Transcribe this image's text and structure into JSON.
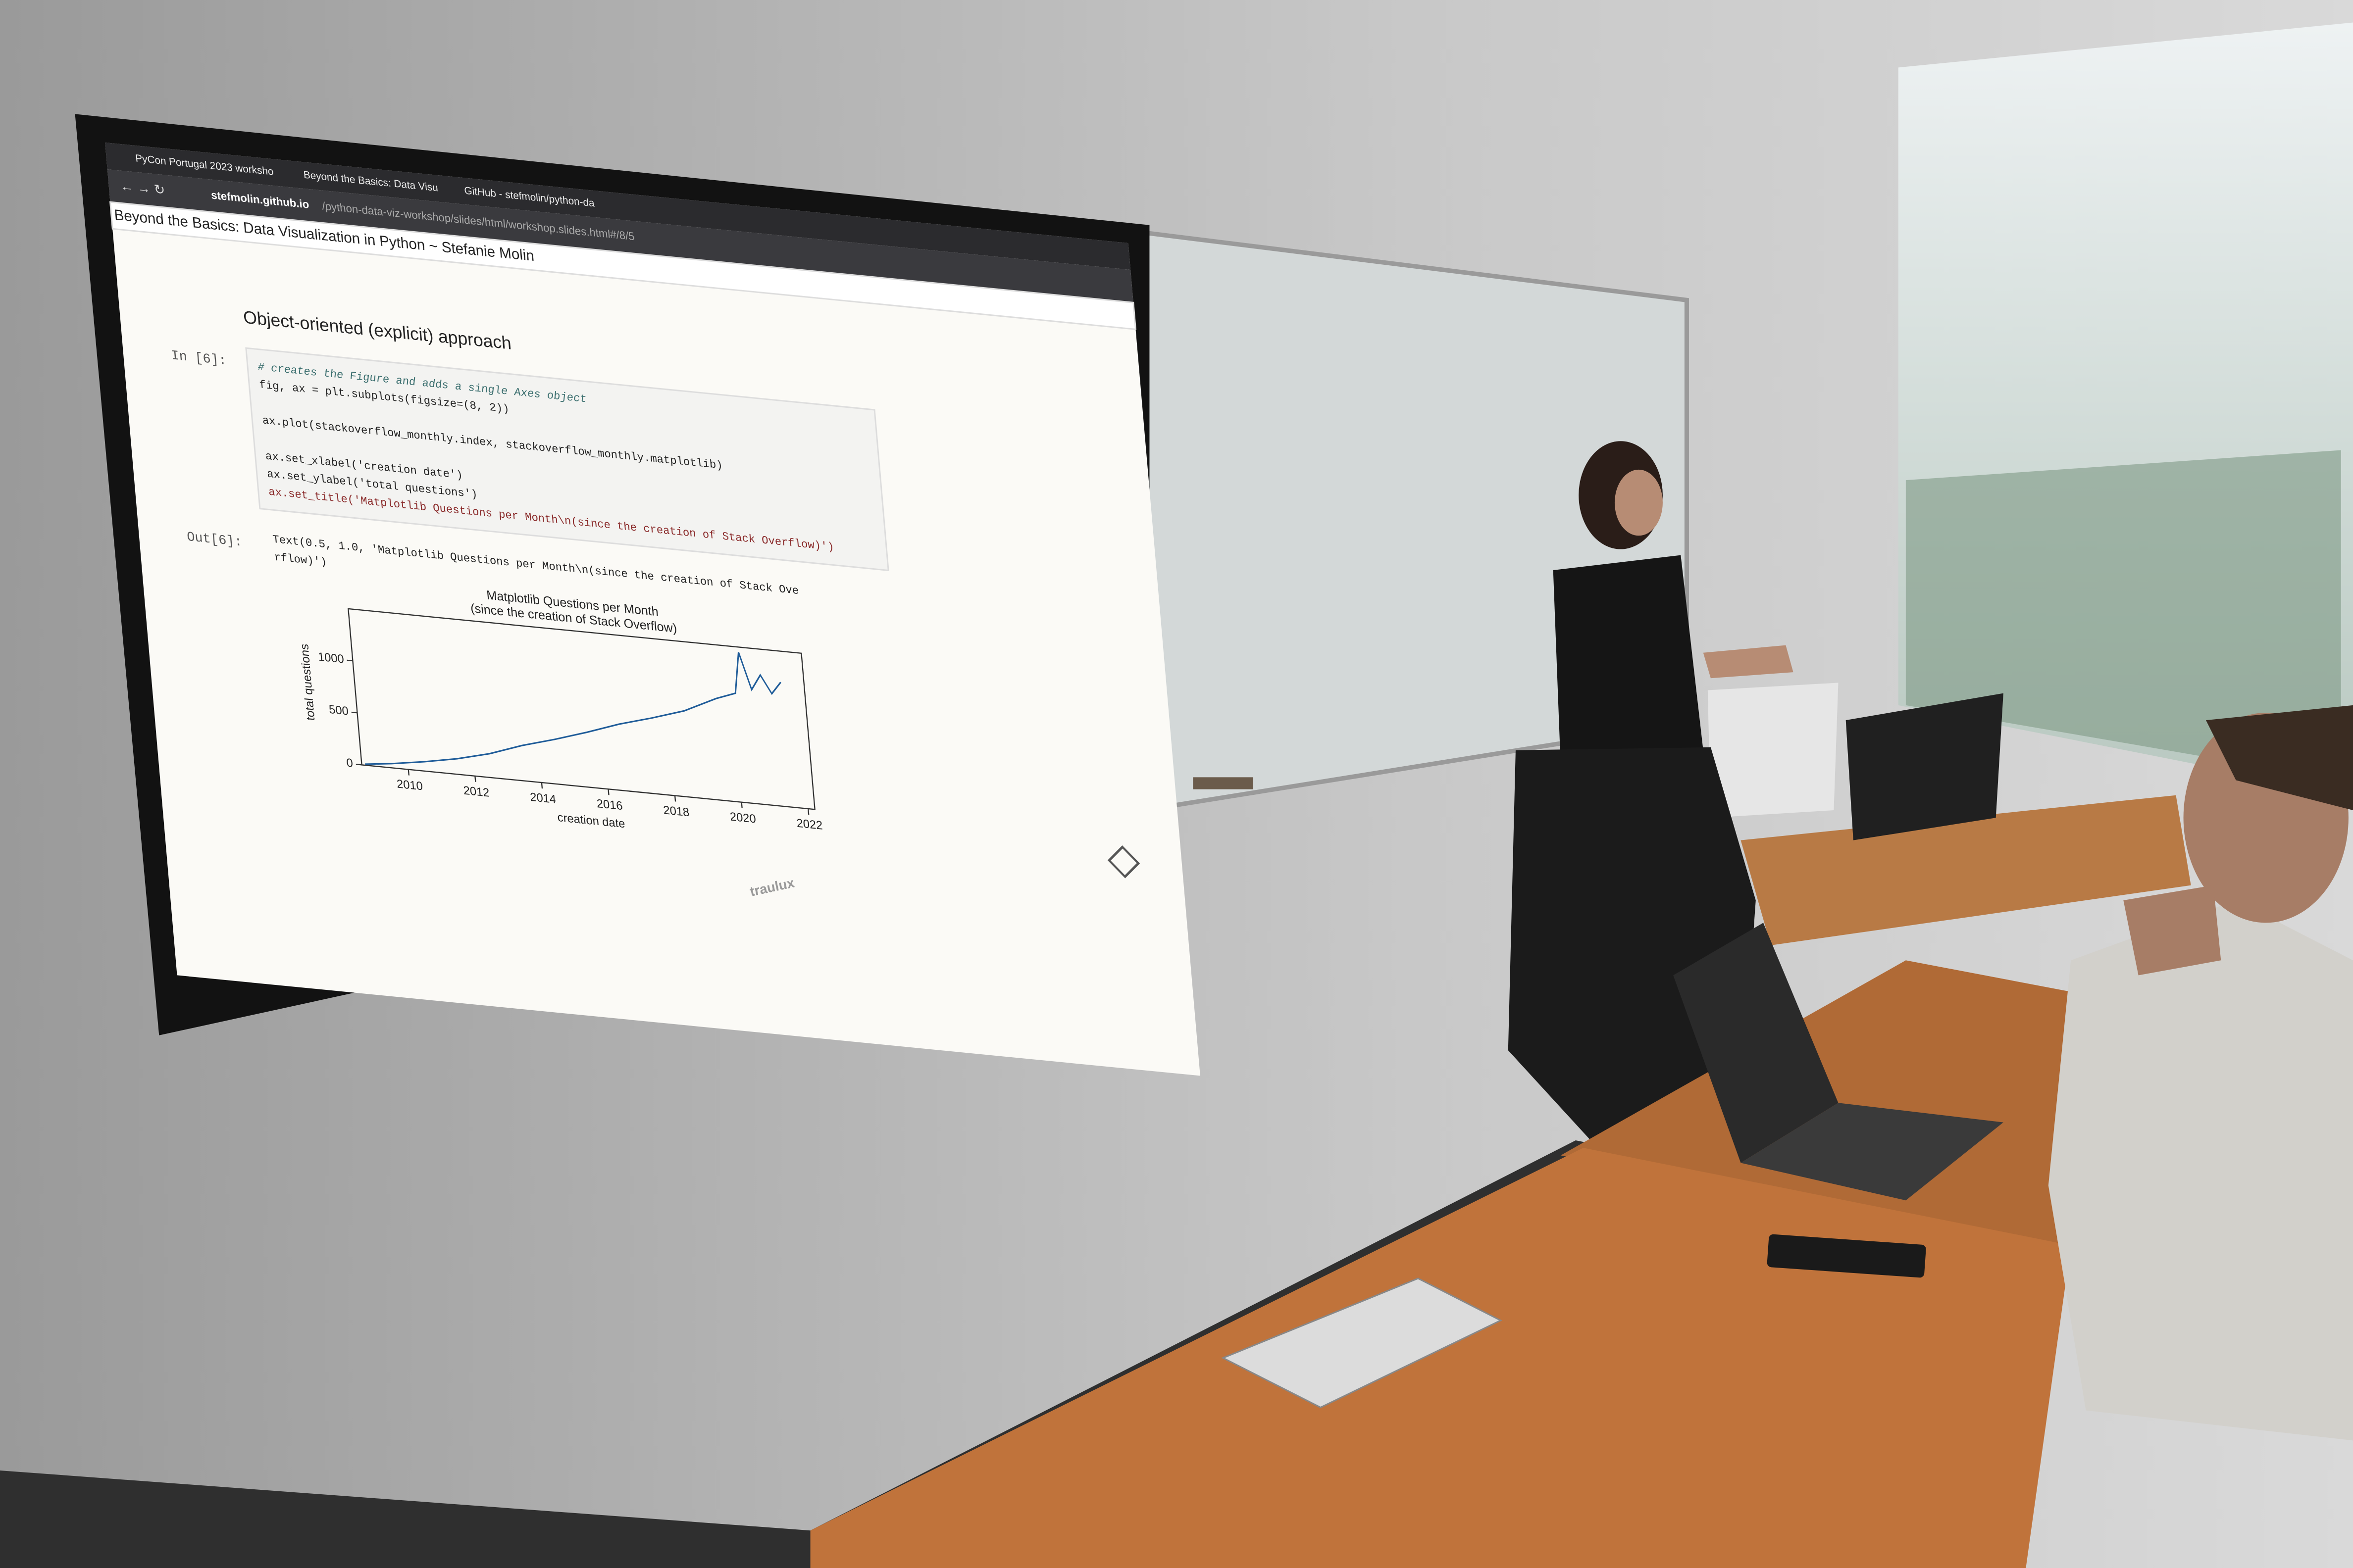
{
  "browser": {
    "tabs": [
      "PyCon Portugal 2023 worksho",
      "Beyond the Basics: Data Visu",
      "GitHub - stefmolin/python-da"
    ],
    "url_host": "stefmolin.github.io",
    "url_path": "/python-data-viz-workshop/slides/html/workshop.slides.html#/8/5"
  },
  "slide": {
    "header": "Beyond the Basics: Data Visualization in Python ~ Stefanie Molin",
    "heading": "Object-oriented (explicit) approach",
    "input_prompt": "In [6]:",
    "code": [
      "# creates the Figure and adds a single Axes object",
      "fig, ax = plt.subplots(figsize=(8, 2))",
      "ax.plot(stackoverflow_monthly.index, stackoverflow_monthly.matplotlib)",
      "ax.set_xlabel('creation date')",
      "ax.set_ylabel('total questions')",
      "ax.set_title('Matplotlib Questions per Month\\n(since the creation of Stack Overflow)')"
    ],
    "output_prompt": "Out[6]:",
    "output": [
      "Text(0.5, 1.0, 'Matplotlib Questions per Month\\n(since the creation of Stack Ove",
      "rflow)')"
    ],
    "chart": {
      "type": "line",
      "title": [
        "Matplotlib Questions per Month",
        "(since the creation of Stack Overflow)"
      ],
      "xlabel": "creation date",
      "ylabel": "total questions",
      "x": [
        2008.7,
        2009.5,
        2010.5,
        2011.5,
        2012.5,
        2013.5,
        2014.5,
        2015.5,
        2016.5,
        2017.5,
        2018.5,
        2019.5,
        2020.1,
        2020.3,
        2020.6,
        2020.9,
        2021.2,
        2021.5
      ],
      "values": [
        10,
        40,
        90,
        150,
        230,
        340,
        430,
        530,
        640,
        730,
        830,
        980,
        1050,
        1450,
        1100,
        1250,
        1080,
        1200
      ],
      "color": "#1f5c99",
      "xlim": [
        2008.6,
        2022.2
      ],
      "ylim": [
        0,
        1500
      ],
      "xticks": [
        2010,
        2012,
        2014,
        2016,
        2018,
        2020,
        2022
      ],
      "yticks": [
        0,
        500,
        1000
      ]
    }
  },
  "display_brand": "traulux"
}
